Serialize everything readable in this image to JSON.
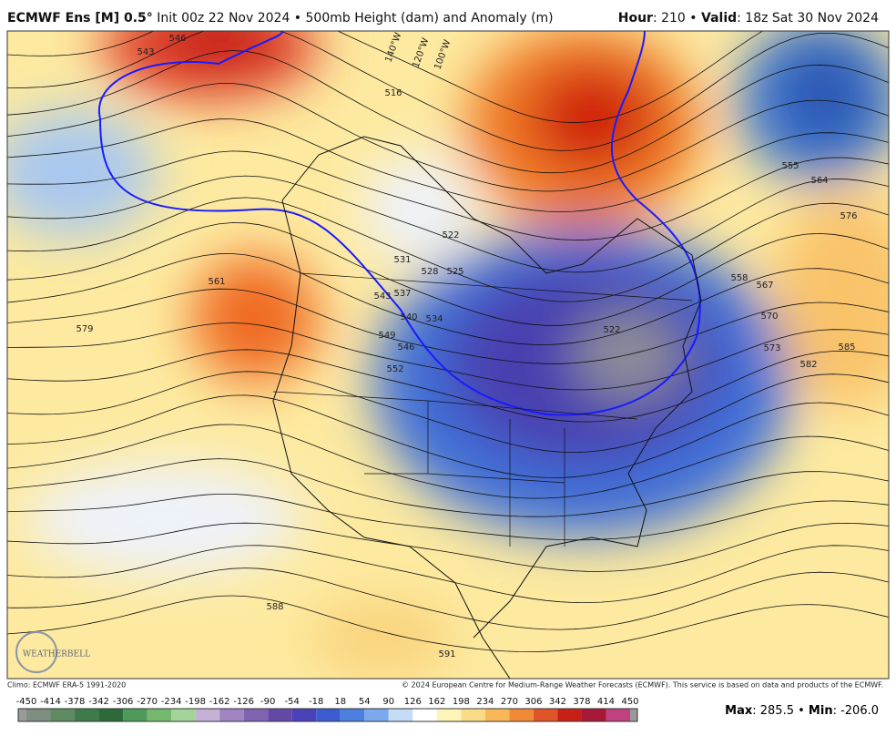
{
  "header": {
    "model": "ECMWF Ens [M] 0.5°",
    "subtitle": "Init 00z 22 Nov 2024 • 500mb Height (dam) and Anomaly (m)",
    "hour_label": "Hour",
    "hour_value": ": 210 • ",
    "valid_label": "Valid",
    "valid_value": ": 18z Sat 30 Nov 2024"
  },
  "map": {
    "contour_labels": [
      "543",
      "546",
      "516",
      "561",
      "579",
      "522",
      "525",
      "528",
      "531",
      "534",
      "537",
      "540",
      "543",
      "546",
      "549",
      "552",
      "555",
      "564",
      "576",
      "558",
      "567",
      "570",
      "573",
      "582",
      "585",
      "588",
      "591",
      "522"
    ],
    "longitude_labels": [
      "140°W",
      "120°W",
      "100°W"
    ],
    "logo": "WEATHERBELL"
  },
  "footer": {
    "climo": "Climo: ECMWF ERA-5 1991-2020",
    "copyright": "© 2024 European Centre for Medium-Range Weather Forecasts (ECMWF). This service is based on data and products of the ECMWF.",
    "colorbar_ticks": [
      "-450",
      "-414",
      "-378",
      "-342",
      "-306",
      "-270",
      "-234",
      "-198",
      "-162",
      "-126",
      "-90",
      "-54",
      "-18",
      "18",
      "54",
      "90",
      "126",
      "162",
      "198",
      "234",
      "270",
      "306",
      "342",
      "378",
      "414",
      "450"
    ],
    "max_label": "Max",
    "max_value": ": 285.5 • ",
    "min_label": "Min",
    "min_value": ": -206.0"
  }
}
